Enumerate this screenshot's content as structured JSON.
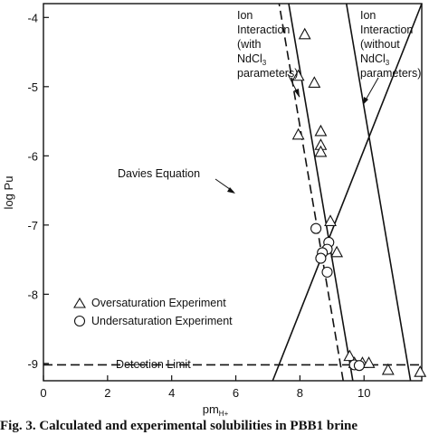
{
  "chart_data": {
    "type": "scatter",
    "xlabel": "pm",
    "xlabel_sub": "H+",
    "ylabel": "log Pu",
    "xlim": [
      0,
      11.8
    ],
    "ylim": [
      -9.25,
      -3.8
    ],
    "xticks": [
      "0",
      "2",
      "4",
      "6",
      "8",
      "10"
    ],
    "xtick_values": [
      0,
      2,
      4,
      6,
      8,
      10
    ],
    "yticks": [
      "-4",
      "-5",
      "-6",
      "-7",
      "-8",
      "-9"
    ],
    "ytick_values": [
      -4,
      -5,
      -6,
      -7,
      -8,
      -9
    ],
    "grid": false,
    "legend_position": "bottom-left",
    "series": [
      {
        "name": "Oversaturation Experiment",
        "marker": "triangle",
        "points": [
          [
            8.15,
            -4.25
          ],
          [
            7.95,
            -4.85
          ],
          [
            8.45,
            -4.95
          ],
          [
            7.95,
            -5.7
          ],
          [
            8.65,
            -5.65
          ],
          [
            8.65,
            -5.85
          ],
          [
            8.65,
            -5.95
          ],
          [
            8.95,
            -6.95
          ],
          [
            9.15,
            -7.4
          ],
          [
            9.55,
            -8.9
          ],
          [
            9.7,
            -9.0
          ],
          [
            9.95,
            -9.0
          ],
          [
            10.15,
            -9.0
          ],
          [
            10.75,
            -9.1
          ],
          [
            11.75,
            -9.13
          ]
        ]
      },
      {
        "name": "Undersaturation Experiment",
        "marker": "circle",
        "points": [
          [
            8.5,
            -7.05
          ],
          [
            8.9,
            -7.25
          ],
          [
            8.85,
            -7.35
          ],
          [
            8.7,
            -7.4
          ],
          [
            8.65,
            -7.48
          ],
          [
            8.85,
            -7.68
          ],
          [
            9.7,
            -9.02
          ],
          [
            9.85,
            -9.03
          ]
        ]
      }
    ],
    "lines": [
      {
        "name": "Davies Equation",
        "style": "solid",
        "x": [
          7.15,
          11.8
        ],
        "y": [
          -9.25,
          -3.8
        ]
      },
      {
        "name": "Ion Interaction (with NdCl3 parameters), solid",
        "style": "solid",
        "x": [
          9.65,
          7.65
        ],
        "y": [
          -9.25,
          -3.8
        ]
      },
      {
        "name": "Ion Interaction (with NdCl3 parameters), dashed",
        "style": "dashed",
        "x": [
          9.35,
          7.35
        ],
        "y": [
          -9.25,
          -3.8
        ]
      },
      {
        "name": "Ion Interaction (without NdCl3 parameters)",
        "style": "solid",
        "x": [
          11.45,
          9.45
        ],
        "y": [
          -9.25,
          -3.8
        ]
      },
      {
        "name": "Detection Limit",
        "style": "dashed",
        "x": [
          0,
          11.8
        ],
        "y": [
          -9.02,
          -9.02
        ]
      }
    ],
    "annotations": {
      "with": [
        "Ion",
        "Interaction",
        "(with",
        "NdCl",
        "parameters)"
      ],
      "without": [
        "Ion",
        "Interaction",
        "(without",
        "NdCl",
        "parameters)"
      ],
      "subscript": "3",
      "davies": "Davies Equation",
      "detection": "Detection Limit",
      "legend_over": "Oversaturation Experiment",
      "legend_under": "Undersaturation Experiment"
    }
  },
  "caption": "Fig. 3. Calculated and experimental solubilities in PBB1 brine"
}
